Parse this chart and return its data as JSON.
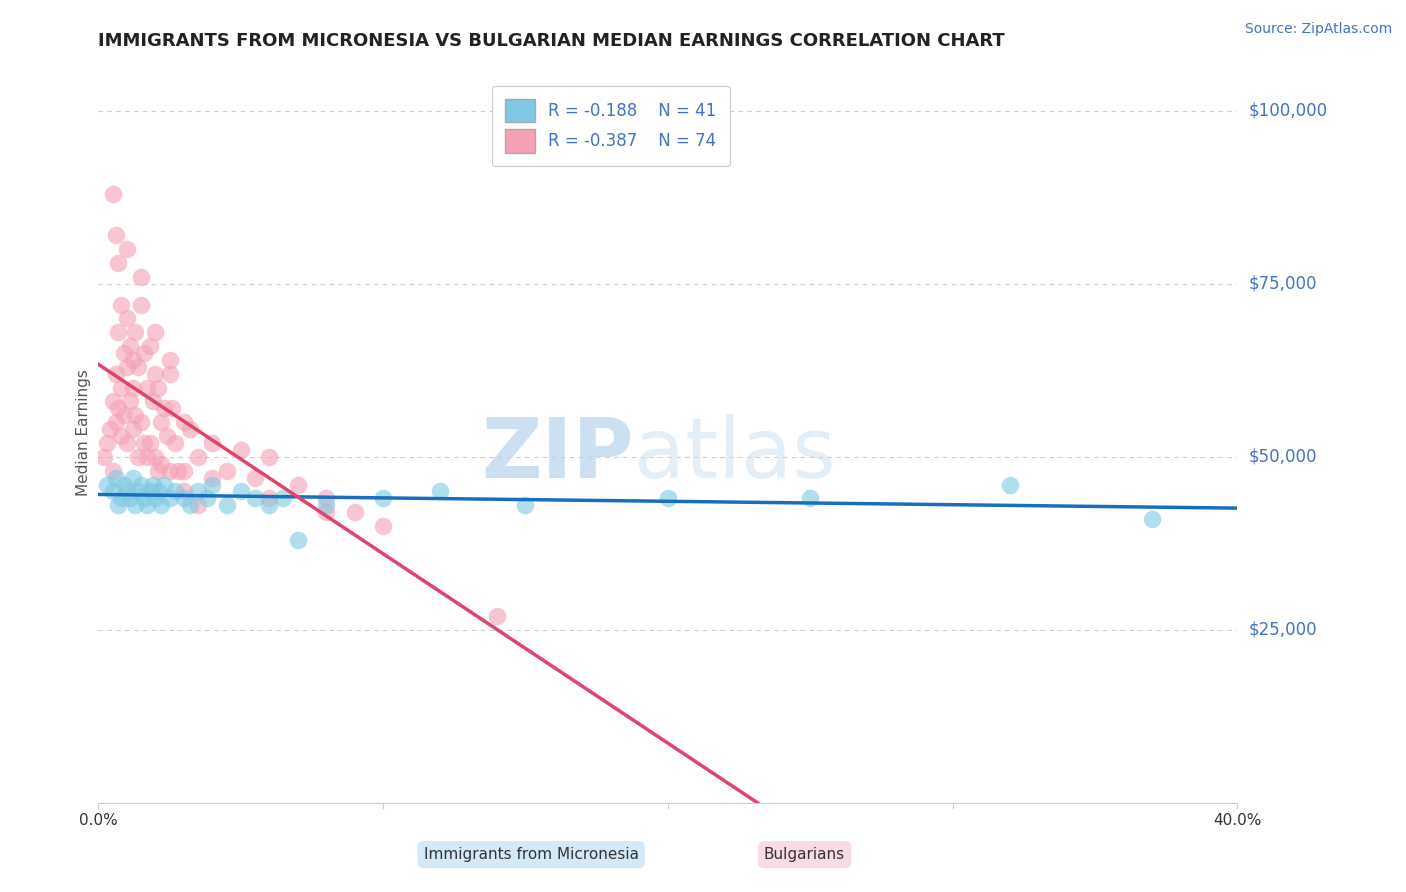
{
  "title": "IMMIGRANTS FROM MICRONESIA VS BULGARIAN MEDIAN EARNINGS CORRELATION CHART",
  "source": "Source: ZipAtlas.com",
  "ylabel": "Median Earnings",
  "y_ticks": [
    0,
    25000,
    50000,
    75000,
    100000
  ],
  "y_tick_labels": [
    "",
    "$25,000",
    "$50,000",
    "$75,000",
    "$100,000"
  ],
  "x_min": 0.0,
  "x_max": 40.0,
  "y_min": 0,
  "y_max": 107000,
  "legend_blue_label": "Immigrants from Micronesia",
  "legend_pink_label": "Bulgarians",
  "legend_blue_r": "R = -0.188",
  "legend_pink_r": "R = -0.387",
  "legend_blue_n": "N = 41",
  "legend_pink_n": "N = 74",
  "blue_color": "#7ec8e3",
  "pink_color": "#f4a0b5",
  "blue_line_color": "#1a6fbd",
  "pink_line_color": "#e0446a",
  "watermark_zip": "ZIP",
  "watermark_atlas": "atlas",
  "background_color": "#ffffff",
  "blue_scatter_x": [
    0.3,
    0.5,
    0.6,
    0.7,
    0.8,
    0.9,
    1.0,
    1.1,
    1.2,
    1.3,
    1.4,
    1.5,
    1.6,
    1.7,
    1.8,
    1.9,
    2.0,
    2.1,
    2.2,
    2.3,
    2.5,
    2.7,
    3.0,
    3.2,
    3.5,
    3.8,
    4.0,
    4.5,
    5.0,
    5.5,
    6.0,
    6.5,
    7.0,
    8.0,
    10.0,
    12.0,
    15.0,
    20.0,
    25.0,
    32.0,
    37.0
  ],
  "blue_scatter_y": [
    46000,
    45000,
    47000,
    43000,
    44000,
    46000,
    45000,
    44000,
    47000,
    43000,
    45000,
    46000,
    44000,
    43000,
    45000,
    46000,
    44000,
    45000,
    43000,
    46000,
    44000,
    45000,
    44000,
    43000,
    45000,
    44000,
    46000,
    43000,
    45000,
    44000,
    43000,
    44000,
    38000,
    43000,
    44000,
    45000,
    43000,
    44000,
    44000,
    46000,
    41000
  ],
  "pink_scatter_x": [
    0.2,
    0.3,
    0.4,
    0.5,
    0.5,
    0.6,
    0.6,
    0.7,
    0.7,
    0.8,
    0.8,
    0.9,
    0.9,
    1.0,
    1.0,
    1.0,
    1.1,
    1.1,
    1.2,
    1.2,
    1.3,
    1.3,
    1.4,
    1.4,
    1.5,
    1.5,
    1.6,
    1.6,
    1.7,
    1.7,
    1.8,
    1.8,
    1.9,
    2.0,
    2.0,
    2.1,
    2.1,
    2.2,
    2.2,
    2.3,
    2.4,
    2.5,
    2.5,
    2.6,
    2.7,
    2.8,
    3.0,
    3.0,
    3.2,
    3.5,
    4.0,
    4.5,
    5.0,
    5.5,
    6.0,
    7.0,
    8.0,
    9.0,
    3.0,
    3.5,
    4.0,
    6.0,
    8.0,
    10.0,
    1.0,
    1.5,
    2.0,
    2.5,
    0.5,
    0.6,
    0.7,
    0.8,
    1.2,
    14.0
  ],
  "pink_scatter_y": [
    50000,
    52000,
    54000,
    58000,
    48000,
    55000,
    62000,
    57000,
    68000,
    60000,
    53000,
    65000,
    56000,
    70000,
    63000,
    52000,
    66000,
    58000,
    64000,
    54000,
    68000,
    56000,
    63000,
    50000,
    72000,
    55000,
    65000,
    52000,
    60000,
    50000,
    66000,
    52000,
    58000,
    62000,
    50000,
    60000,
    48000,
    55000,
    49000,
    57000,
    53000,
    62000,
    48000,
    57000,
    52000,
    48000,
    55000,
    48000,
    54000,
    50000,
    52000,
    48000,
    51000,
    47000,
    50000,
    46000,
    44000,
    42000,
    45000,
    43000,
    47000,
    44000,
    42000,
    40000,
    80000,
    76000,
    68000,
    64000,
    88000,
    82000,
    78000,
    72000,
    60000,
    27000
  ]
}
